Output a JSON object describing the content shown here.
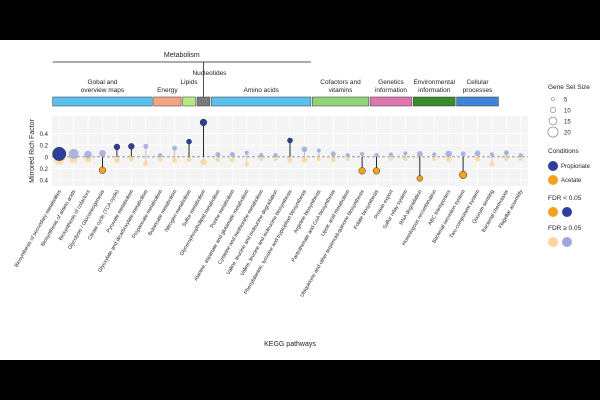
{
  "chart_data": {
    "type": "scatter",
    "title": "Metabolism",
    "ylabel": "Mirrored Rich Factor",
    "xlabel": "KEGG pathways",
    "ylim": [
      -0.5,
      0.7
    ],
    "yticks": [
      -0.4,
      -0.2,
      0,
      0.2,
      0.4
    ],
    "ytick_labels": [
      "0.4",
      "0.2",
      "0",
      "0.2",
      "0.4"
    ],
    "nucleotides_label": "Nucleotides",
    "categories": [
      {
        "label": "Gobal and overview maps",
        "color": "#5bc0eb",
        "span": [
          0,
          6
        ]
      },
      {
        "label": "Energy",
        "color": "#f4a582",
        "span": [
          7,
          8
        ]
      },
      {
        "label": "Lipids",
        "color": "#b8e986",
        "span": [
          9,
          9
        ]
      },
      {
        "label": "",
        "color": "#7a7a7a",
        "span": [
          10,
          10
        ]
      },
      {
        "label": "Amino acids",
        "color": "#5bc0eb",
        "span": [
          11,
          17
        ]
      },
      {
        "label": "Cofactors and vitamins",
        "color": "#90d37a",
        "span": [
          18,
          21
        ]
      },
      {
        "label": "Genetics information",
        "color": "#de77ae",
        "span": [
          22,
          24
        ]
      },
      {
        "label": "Environmental information",
        "color": "#3a8b2f",
        "span": [
          25,
          27
        ]
      },
      {
        "label": "Cellular processes",
        "color": "#3d86d6",
        "span": [
          28,
          30
        ]
      }
    ],
    "pathways": [
      "Biosynthesis of secondary metabolites",
      "Biosynthesis of amino acids",
      "Biosynthesis of cofactors",
      "Glycolysis / Gluconeogenesis",
      "Citrate cycle (TCA cycle)",
      "Pyruvate metabolism",
      "Glyoxylate and dicarboxylate metabolism",
      "Propanoate metabolism",
      "Butanoate metabolism",
      "Nitrogen metabolism",
      "Sulfur metabolism",
      "Glycerophospholipid metabolism",
      "Purine metabolism",
      "Alanine, aspartate and glutamate metabolism",
      "Cysteine and methionine metabolism",
      "Valine, leucine and isoleucine degradation",
      "Valine, leucine and isoleucine biosynthesis",
      "Phenylalanine, tyrosine and tryptophan biosynthesis",
      "Arginine biosynthesis",
      "Pantothenate and CoA biosynthesis",
      "Lipoic acid metabolism",
      "Ubiquinone and other terpenoid-quinone biosynthesis",
      "Folate biosynthesis",
      "Protein export",
      "Sulfur relay system",
      "RNA degradation",
      "Homologous recombination",
      "ABC transporters",
      "Bacterial secretion system",
      "Two-component system",
      "Quorum sensing",
      "Bacterial chemotaxis",
      "Flagellar assembly"
    ],
    "series": [
      {
        "name": "Propionate",
        "color": "#2c3e9e",
        "light_color": "#9fa8dc",
        "values": [
          0.05,
          0.05,
          0.04,
          0.06,
          0.17,
          0.18,
          0.18,
          0.03,
          0.15,
          0.26,
          0.59,
          0.04,
          0.04,
          0.07,
          0.03,
          0.03,
          0.28,
          0.13,
          0.11,
          0.05,
          0.03,
          0.05,
          0.03,
          0.04,
          0.06,
          0.05,
          0.04,
          0.05,
          0.05,
          0.06,
          0.04,
          0.07,
          0.03
        ],
        "sizes": [
          16,
          12,
          9,
          8,
          7,
          7,
          6,
          5,
          6,
          6,
          8,
          6,
          6,
          5,
          5,
          5,
          6,
          7,
          5,
          6,
          5,
          5,
          5,
          5,
          5,
          7,
          5,
          8,
          6,
          7,
          5,
          6,
          5
        ],
        "significant": [
          true,
          false,
          false,
          false,
          true,
          true,
          false,
          false,
          false,
          true,
          true,
          false,
          false,
          false,
          false,
          false,
          true,
          false,
          false,
          false,
          false,
          false,
          false,
          false,
          false,
          false,
          false,
          false,
          false,
          false,
          false,
          false,
          false
        ]
      },
      {
        "name": "Acetate",
        "color": "#f5a11d",
        "light_color": "#fbd69a",
        "values": [
          0.05,
          0.04,
          0.04,
          0.23,
          0.06,
          0.04,
          0.12,
          0.05,
          0.06,
          0.05,
          0.09,
          0.05,
          0.05,
          0.13,
          0.04,
          0.04,
          0.06,
          0.05,
          0.04,
          0.05,
          0.04,
          0.24,
          0.24,
          0.04,
          0.04,
          0.37,
          0.04,
          0.04,
          0.31,
          0.04,
          0.13,
          0.04,
          0.04
        ],
        "sizes": [
          12,
          10,
          8,
          8,
          7,
          6,
          6,
          5,
          6,
          6,
          8,
          6,
          6,
          5,
          5,
          5,
          6,
          7,
          5,
          6,
          5,
          8,
          8,
          5,
          5,
          7,
          5,
          7,
          9,
          6,
          6,
          5,
          5
        ],
        "significant": [
          false,
          false,
          false,
          true,
          false,
          false,
          false,
          false,
          false,
          false,
          false,
          false,
          false,
          false,
          false,
          false,
          false,
          false,
          false,
          false,
          false,
          true,
          true,
          false,
          false,
          true,
          false,
          false,
          true,
          false,
          false,
          false,
          false
        ]
      }
    ],
    "legend": {
      "size_title": "Gene Set Size",
      "size_levels": [
        5,
        10,
        15,
        20
      ],
      "conditions_title": "Conditions",
      "condition_labels": [
        "Propionate",
        "Acetate"
      ],
      "fdr_sig_label": "FDR < 0.05",
      "fdr_nonsig_label": "FDR ≥ 0.05"
    }
  }
}
